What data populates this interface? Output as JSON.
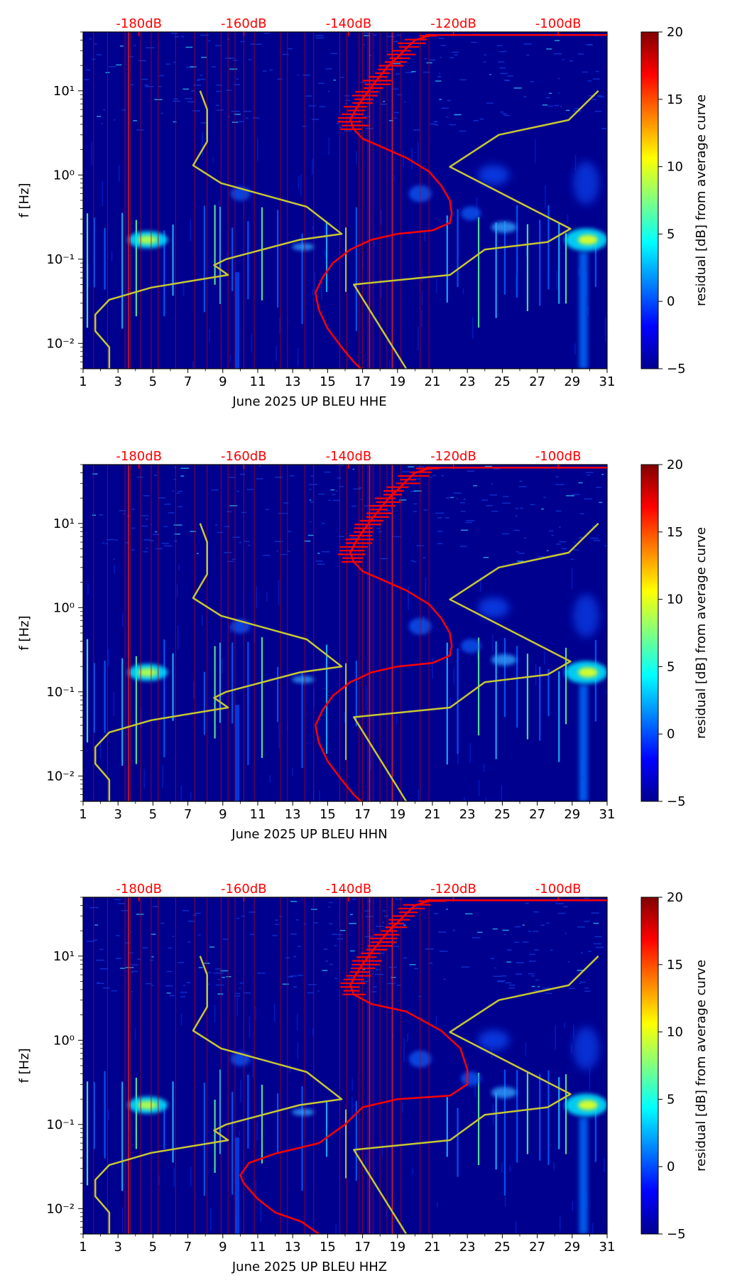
{
  "chart_data": [
    {
      "type": "heatmap",
      "title": "",
      "xlabel": "June 2025 UP BLEU  HHE",
      "ylabel": "f [Hz]",
      "xlim": [
        1,
        31
      ],
      "ylim": [
        0.005,
        50
      ],
      "y_scale": "log",
      "x_ticks": [
        "1",
        "3",
        "5",
        "7",
        "9",
        "11",
        "13",
        "15",
        "17",
        "19",
        "21",
        "23",
        "25",
        "27",
        "29",
        "31"
      ],
      "y_ticks": [
        {
          "value": 0.01,
          "label": "10⁻²"
        },
        {
          "value": 0.1,
          "label": "10⁻¹"
        },
        {
          "value": 1,
          "label": "10⁰"
        },
        {
          "value": 10,
          "label": "10¹"
        }
      ],
      "top_axis": {
        "color": "#ff0000",
        "labels": [
          "-180dB",
          "-160dB",
          "-140dB",
          "-120dB",
          "-100dB"
        ],
        "day_positions": [
          4.2,
          10.2,
          16.2,
          22.2,
          28.2
        ]
      },
      "colorbar": {
        "label": "residual [dB] from average curve",
        "min": -5,
        "max": 20,
        "ticks": [
          "20",
          "15",
          "10",
          "5",
          "0",
          "−5"
        ],
        "colormap": "jet"
      },
      "series": [
        {
          "name": "average curve (red)",
          "color": "#ff0000",
          "points": [
            [
              20.8,
              45
            ],
            [
              20,
              40
            ],
            [
              19.5,
              32
            ],
            [
              19,
              25
            ],
            [
              18.5,
              20
            ],
            [
              18,
              15
            ],
            [
              17.5,
              11
            ],
            [
              17,
              8
            ],
            [
              16.6,
              6
            ],
            [
              16.3,
              4.5
            ],
            [
              16.5,
              3.5
            ],
            [
              17,
              2.7
            ],
            [
              18,
              2.2
            ],
            [
              19.5,
              1.6
            ],
            [
              20.8,
              1.1
            ],
            [
              21.5,
              0.75
            ],
            [
              22,
              0.5
            ],
            [
              22.1,
              0.35
            ],
            [
              22,
              0.27
            ],
            [
              21,
              0.22
            ],
            [
              19,
              0.2
            ],
            [
              17.5,
              0.17
            ],
            [
              16.3,
              0.13
            ],
            [
              15.3,
              0.09
            ],
            [
              14.7,
              0.06
            ],
            [
              14.3,
              0.04
            ],
            [
              14.5,
              0.025
            ],
            [
              15,
              0.015
            ],
            [
              15.8,
              0.009
            ],
            [
              16.5,
              0.006
            ],
            [
              16.9,
              0.005
            ]
          ]
        },
        {
          "name": "reference curve (yellow)",
          "color": "#c8c832",
          "points": [
            [
              7.7,
              10
            ],
            [
              8.1,
              6
            ],
            [
              8.1,
              2.5
            ],
            [
              7.3,
              1.3
            ],
            [
              8.9,
              0.8
            ],
            [
              13.8,
              0.42
            ],
            [
              15.8,
              0.2
            ],
            [
              13.4,
              0.17
            ],
            [
              9.2,
              0.1
            ],
            [
              8.5,
              0.085
            ],
            [
              9.3,
              0.065
            ],
            [
              4.9,
              0.046
            ],
            [
              2.5,
              0.033
            ],
            [
              1.7,
              0.022
            ],
            [
              1.7,
              0.014
            ],
            [
              2.5,
              0.009
            ],
            [
              2.5,
              0.005
            ]
          ]
        },
        {
          "name": "reference curve right (yellow)",
          "color": "#c8c832",
          "points": [
            [
              30.5,
              10
            ],
            [
              28.8,
              4.5
            ],
            [
              24.8,
              3
            ],
            [
              22,
              1.25
            ],
            [
              28.9,
              0.23
            ],
            [
              27.6,
              0.16
            ],
            [
              24,
              0.13
            ],
            [
              22,
              0.065
            ],
            [
              16.5,
              0.05
            ],
            [
              19.5,
              0.005
            ]
          ]
        }
      ]
    },
    {
      "type": "heatmap",
      "title": "",
      "xlabel": "June 2025 UP BLEU  HHN",
      "ylabel": "f [Hz]",
      "xlim": [
        1,
        31
      ],
      "ylim": [
        0.005,
        50
      ],
      "y_scale": "log",
      "x_ticks": [
        "1",
        "3",
        "5",
        "7",
        "9",
        "11",
        "13",
        "15",
        "17",
        "19",
        "21",
        "23",
        "25",
        "27",
        "29",
        "31"
      ],
      "y_ticks": [
        {
          "value": 0.01,
          "label": "10⁻²"
        },
        {
          "value": 0.1,
          "label": "10⁻¹"
        },
        {
          "value": 1,
          "label": "10⁰"
        },
        {
          "value": 10,
          "label": "10¹"
        }
      ],
      "top_axis": {
        "color": "#ff0000",
        "labels": [
          "-180dB",
          "-160dB",
          "-140dB",
          "-120dB",
          "-100dB"
        ],
        "day_positions": [
          4.2,
          10.2,
          16.2,
          22.2,
          28.2
        ]
      },
      "colorbar": {
        "label": "residual [dB] from average curve",
        "min": -5,
        "max": 20,
        "ticks": [
          "20",
          "15",
          "10",
          "5",
          "0",
          "−5"
        ],
        "colormap": "jet"
      },
      "series": [
        {
          "name": "average curve (red)",
          "color": "#ff0000",
          "points": [
            [
              20.8,
              45
            ],
            [
              20,
              40
            ],
            [
              19.5,
              32
            ],
            [
              19,
              25
            ],
            [
              18.5,
              20
            ],
            [
              18,
              15
            ],
            [
              17.5,
              11
            ],
            [
              17,
              8
            ],
            [
              16.6,
              6
            ],
            [
              16.3,
              4.5
            ],
            [
              16.5,
              3.5
            ],
            [
              17,
              2.7
            ],
            [
              18,
              2.2
            ],
            [
              19.5,
              1.6
            ],
            [
              20.8,
              1.1
            ],
            [
              21.5,
              0.75
            ],
            [
              22,
              0.5
            ],
            [
              22.1,
              0.35
            ],
            [
              22,
              0.27
            ],
            [
              21,
              0.22
            ],
            [
              19,
              0.2
            ],
            [
              17.5,
              0.17
            ],
            [
              16.3,
              0.13
            ],
            [
              15.3,
              0.09
            ],
            [
              14.7,
              0.06
            ],
            [
              14.3,
              0.04
            ],
            [
              14.5,
              0.025
            ],
            [
              15,
              0.015
            ],
            [
              15.8,
              0.009
            ],
            [
              16.5,
              0.006
            ],
            [
              16.9,
              0.005
            ]
          ]
        },
        {
          "name": "reference curve (yellow)",
          "color": "#c8c832",
          "points": [
            [
              7.7,
              10
            ],
            [
              8.1,
              6
            ],
            [
              8.1,
              2.5
            ],
            [
              7.3,
              1.3
            ],
            [
              8.9,
              0.8
            ],
            [
              13.8,
              0.42
            ],
            [
              15.8,
              0.2
            ],
            [
              13.4,
              0.17
            ],
            [
              9.2,
              0.1
            ],
            [
              8.5,
              0.085
            ],
            [
              9.3,
              0.065
            ],
            [
              4.9,
              0.046
            ],
            [
              2.5,
              0.033
            ],
            [
              1.7,
              0.022
            ],
            [
              1.7,
              0.014
            ],
            [
              2.5,
              0.009
            ],
            [
              2.5,
              0.005
            ]
          ]
        },
        {
          "name": "reference curve right (yellow)",
          "color": "#c8c832",
          "points": [
            [
              30.5,
              10
            ],
            [
              28.8,
              4.5
            ],
            [
              24.8,
              3
            ],
            [
              22,
              1.25
            ],
            [
              28.9,
              0.23
            ],
            [
              27.6,
              0.16
            ],
            [
              24,
              0.13
            ],
            [
              22,
              0.065
            ],
            [
              16.5,
              0.05
            ],
            [
              19.5,
              0.005
            ]
          ]
        }
      ]
    },
    {
      "type": "heatmap",
      "title": "",
      "xlabel": "June 2025 UP BLEU  HHZ",
      "ylabel": "f [Hz]",
      "xlim": [
        1,
        31
      ],
      "ylim": [
        0.005,
        50
      ],
      "y_scale": "log",
      "x_ticks": [
        "1",
        "3",
        "5",
        "7",
        "9",
        "11",
        "13",
        "15",
        "17",
        "19",
        "21",
        "23",
        "25",
        "27",
        "29",
        "31"
      ],
      "y_ticks": [
        {
          "value": 0.01,
          "label": "10⁻²"
        },
        {
          "value": 0.1,
          "label": "10⁻¹"
        },
        {
          "value": 1,
          "label": "10⁰"
        },
        {
          "value": 10,
          "label": "10¹"
        }
      ],
      "top_axis": {
        "color": "#ff0000",
        "labels": [
          "-180dB",
          "-160dB",
          "-140dB",
          "-120dB",
          "-100dB"
        ],
        "day_positions": [
          4.2,
          10.2,
          16.2,
          22.2,
          28.2
        ]
      },
      "colorbar": {
        "label": "residual [dB] from average curve",
        "min": -5,
        "max": 20,
        "ticks": [
          "20",
          "15",
          "10",
          "5",
          "0",
          "−5"
        ],
        "colormap": "jet"
      },
      "series": [
        {
          "name": "average curve (red)",
          "color": "#ff0000",
          "points": [
            [
              20.8,
              45
            ],
            [
              20,
              40
            ],
            [
              19.5,
              32
            ],
            [
              19,
              25
            ],
            [
              18.5,
              20
            ],
            [
              18,
              15
            ],
            [
              17.5,
              11
            ],
            [
              17,
              8
            ],
            [
              16.6,
              6
            ],
            [
              16.3,
              4.5
            ],
            [
              16.5,
              3.5
            ],
            [
              17.5,
              2.7
            ],
            [
              19.5,
              2.2
            ],
            [
              21.5,
              1.3
            ],
            [
              22.6,
              0.8
            ],
            [
              23,
              0.45
            ],
            [
              23,
              0.3
            ],
            [
              22,
              0.22
            ],
            [
              19,
              0.2
            ],
            [
              17,
              0.16
            ],
            [
              16,
              0.1
            ],
            [
              14.5,
              0.06
            ],
            [
              12,
              0.045
            ],
            [
              10.5,
              0.035
            ],
            [
              10,
              0.025
            ],
            [
              10.2,
              0.02
            ],
            [
              11,
              0.013
            ],
            [
              12,
              0.009
            ],
            [
              13.5,
              0.007
            ],
            [
              14.5,
              0.005
            ]
          ]
        },
        {
          "name": "reference curve (yellow)",
          "color": "#c8c832",
          "points": [
            [
              7.7,
              10
            ],
            [
              8.1,
              6
            ],
            [
              8.1,
              2.5
            ],
            [
              7.3,
              1.3
            ],
            [
              8.9,
              0.8
            ],
            [
              13.8,
              0.42
            ],
            [
              15.8,
              0.2
            ],
            [
              13.4,
              0.17
            ],
            [
              9.2,
              0.1
            ],
            [
              8.5,
              0.085
            ],
            [
              9.3,
              0.065
            ],
            [
              4.9,
              0.046
            ],
            [
              2.5,
              0.033
            ],
            [
              1.7,
              0.022
            ],
            [
              1.7,
              0.014
            ],
            [
              2.5,
              0.009
            ],
            [
              2.5,
              0.005
            ]
          ]
        },
        {
          "name": "reference curve right (yellow)",
          "color": "#c8c832",
          "points": [
            [
              30.5,
              10
            ],
            [
              28.8,
              4.5
            ],
            [
              24.8,
              3
            ],
            [
              22,
              1.25
            ],
            [
              28.9,
              0.23
            ],
            [
              27.6,
              0.16
            ],
            [
              24,
              0.13
            ],
            [
              22,
              0.065
            ],
            [
              16.5,
              0.05
            ],
            [
              19.5,
              0.005
            ]
          ]
        }
      ]
    }
  ]
}
